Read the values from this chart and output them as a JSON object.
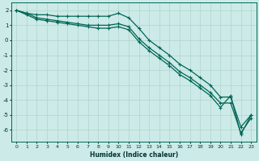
{
  "xlabel": "Humidex (Indice chaleur)",
  "bg_color": "#cceae7",
  "grid_color": "#b0d4cc",
  "line_color": "#006655",
  "xlim": [
    -0.5,
    23.5
  ],
  "ylim": [
    -6.8,
    2.5
  ],
  "xticks": [
    0,
    1,
    2,
    3,
    4,
    5,
    6,
    7,
    8,
    9,
    10,
    11,
    12,
    13,
    14,
    15,
    16,
    17,
    18,
    19,
    20,
    21,
    22,
    23
  ],
  "yticks": [
    2,
    1,
    0,
    -1,
    -2,
    -3,
    -4,
    -5,
    -6
  ],
  "line1_x": [
    0,
    1,
    2,
    3,
    4,
    5,
    6,
    7,
    8,
    9,
    10,
    11,
    12,
    13,
    14,
    15,
    16,
    17,
    18,
    19,
    20,
    21,
    22,
    23
  ],
  "line1_y": [
    2.0,
    1.8,
    1.7,
    1.7,
    1.6,
    1.6,
    1.6,
    1.6,
    1.6,
    1.6,
    1.8,
    1.5,
    0.8,
    0.0,
    -0.5,
    -1.0,
    -1.6,
    -2.0,
    -2.5,
    -3.0,
    -3.8,
    -3.8,
    -5.8,
    -5.0
  ],
  "line2_x": [
    0,
    1,
    2,
    3,
    4,
    5,
    6,
    7,
    8,
    9,
    10,
    11,
    12,
    13,
    14,
    15,
    16,
    17,
    18,
    19,
    20,
    21,
    22,
    23
  ],
  "line2_y": [
    2.0,
    1.8,
    1.5,
    1.4,
    1.3,
    1.2,
    1.1,
    1.0,
    1.0,
    1.0,
    1.1,
    0.9,
    0.1,
    -0.5,
    -1.0,
    -1.5,
    -2.1,
    -2.5,
    -3.0,
    -3.5,
    -4.2,
    -4.2,
    -6.2,
    -5.2
  ],
  "line3_x": [
    0,
    1,
    2,
    3,
    4,
    5,
    6,
    7,
    8,
    9,
    10,
    11,
    12,
    13,
    14,
    15,
    16,
    17,
    18,
    19,
    20,
    21,
    22,
    23
  ],
  "line3_y": [
    2.0,
    1.7,
    1.4,
    1.3,
    1.2,
    1.1,
    1.0,
    0.9,
    0.8,
    0.8,
    0.9,
    0.7,
    -0.1,
    -0.7,
    -1.2,
    -1.7,
    -2.3,
    -2.7,
    -3.2,
    -3.7,
    -4.5,
    -3.7,
    -6.3,
    -5.0
  ]
}
